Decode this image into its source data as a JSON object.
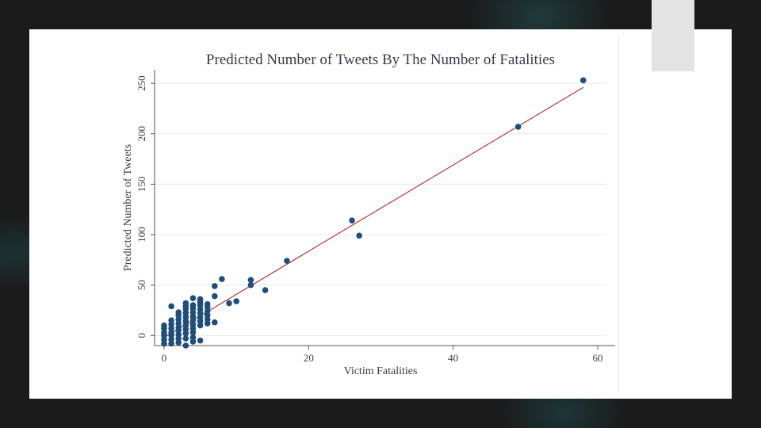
{
  "colors": {
    "marker": "#1f4e79",
    "fit_line": "#b03a3a",
    "grid": "#e4e8ec",
    "text": "#3a3a4a"
  },
  "chart_data": {
    "type": "scatter",
    "title": "Predicted Number of Tweets By The Number of Fatalities",
    "xlabel": "Victim Fatalities",
    "ylabel": "Predicted Number of Tweets",
    "xlim": [
      0,
      60
    ],
    "ylim": [
      -10,
      258
    ],
    "xticks": [
      0,
      20,
      40,
      60
    ],
    "yticks": [
      0,
      50,
      100,
      150,
      200,
      250
    ],
    "grid": "horizontal",
    "fit_line": {
      "x": [
        0,
        58
      ],
      "y": [
        -2,
        246
      ]
    },
    "series": [
      {
        "points": [
          [
            0,
            -8
          ],
          [
            0,
            -4
          ],
          [
            0,
            0
          ],
          [
            0,
            3
          ],
          [
            0,
            7
          ],
          [
            0,
            10
          ],
          [
            1,
            -8
          ],
          [
            1,
            -4
          ],
          [
            1,
            0
          ],
          [
            1,
            3
          ],
          [
            1,
            7
          ],
          [
            1,
            11
          ],
          [
            1,
            15
          ],
          [
            1,
            29
          ],
          [
            2,
            -7
          ],
          [
            2,
            -3
          ],
          [
            2,
            1
          ],
          [
            2,
            5
          ],
          [
            2,
            8
          ],
          [
            2,
            12
          ],
          [
            2,
            16
          ],
          [
            2,
            20
          ],
          [
            2,
            23
          ],
          [
            3,
            -10
          ],
          [
            3,
            -3
          ],
          [
            3,
            2
          ],
          [
            3,
            6
          ],
          [
            3,
            10
          ],
          [
            3,
            14
          ],
          [
            3,
            18
          ],
          [
            3,
            22
          ],
          [
            3,
            26
          ],
          [
            3,
            29
          ],
          [
            3,
            32
          ],
          [
            4,
            -6
          ],
          [
            4,
            -2
          ],
          [
            4,
            3
          ],
          [
            4,
            7
          ],
          [
            4,
            11
          ],
          [
            4,
            15
          ],
          [
            4,
            19
          ],
          [
            4,
            23
          ],
          [
            4,
            27
          ],
          [
            4,
            30
          ],
          [
            4,
            37
          ],
          [
            5,
            -5
          ],
          [
            5,
            10
          ],
          [
            5,
            14
          ],
          [
            5,
            18
          ],
          [
            5,
            22
          ],
          [
            5,
            26
          ],
          [
            5,
            30
          ],
          [
            5,
            33
          ],
          [
            5,
            36
          ],
          [
            6,
            12
          ],
          [
            6,
            16
          ],
          [
            6,
            20
          ],
          [
            6,
            24
          ],
          [
            6,
            28
          ],
          [
            6,
            31
          ],
          [
            7,
            13
          ],
          [
            7,
            39
          ],
          [
            7,
            49
          ],
          [
            8,
            56
          ],
          [
            9,
            32
          ],
          [
            10,
            34
          ],
          [
            12,
            50
          ],
          [
            12,
            55
          ],
          [
            14,
            45
          ],
          [
            17,
            74
          ],
          [
            26,
            114
          ],
          [
            27,
            99
          ],
          [
            49,
            207
          ],
          [
            58,
            253
          ]
        ]
      }
    ]
  }
}
